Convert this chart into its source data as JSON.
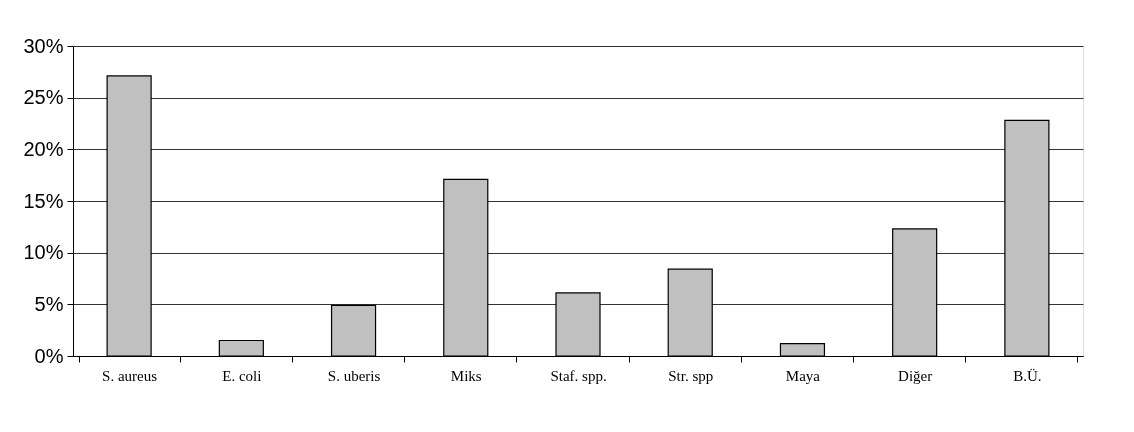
{
  "chart_data": {
    "type": "bar",
    "categories": [
      "S. aureus",
      "E. coli",
      "S. uberis",
      "Miks",
      "Staf. spp.",
      "Str. spp",
      "Maya",
      "Diğer",
      "B.Ü."
    ],
    "values": [
      27.1,
      1.5,
      4.9,
      17.1,
      6.1,
      8.4,
      1.2,
      12.3,
      22.8
    ],
    "color": "#c0c0c0",
    "ylim": [
      0,
      30
    ],
    "yticks": [
      {
        "value": 0,
        "label": "0%"
      },
      {
        "value": 5,
        "label": "5%"
      },
      {
        "value": 10,
        "label": "10%"
      },
      {
        "value": 15,
        "label": "15%"
      },
      {
        "value": 20,
        "label": "20%"
      },
      {
        "value": 25,
        "label": "25%"
      },
      {
        "value": 30,
        "label": "30%"
      }
    ],
    "grid": "y"
  }
}
